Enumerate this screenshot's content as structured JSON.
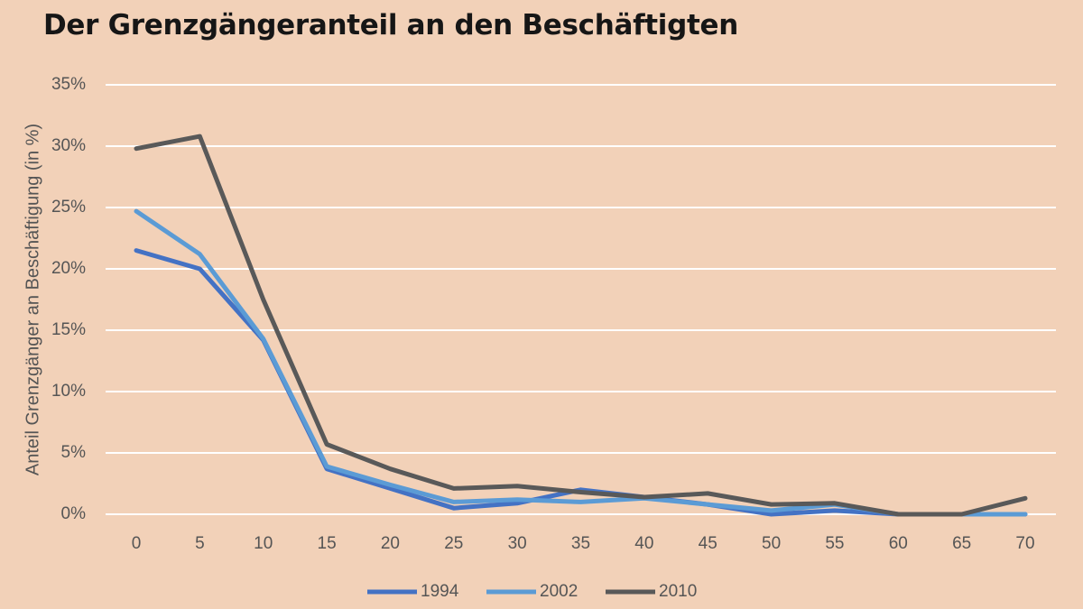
{
  "chart_data": {
    "type": "line",
    "title": "Der Grenzgängeranteil an den Beschäftigten",
    "xlabel": "",
    "ylabel": "Anteil Grenzgänger an Beschäftigung (in %)",
    "x": [
      0,
      5,
      10,
      15,
      20,
      25,
      30,
      35,
      40,
      45,
      50,
      55,
      60,
      65,
      70
    ],
    "x_tick_labels": [
      "0",
      "5",
      "10",
      "15",
      "20",
      "25",
      "30",
      "35",
      "40",
      "45",
      "50",
      "55",
      "60",
      "65",
      "70"
    ],
    "y_tick_labels": [
      "0%",
      "5%",
      "10%",
      "15%",
      "20%",
      "25%",
      "30%",
      "35%"
    ],
    "ylim": [
      0,
      35
    ],
    "grid": "horizontal",
    "legend_position": "bottom",
    "series": [
      {
        "name": "1994",
        "color": "#4472c4",
        "values": [
          21.5,
          20.0,
          14.2,
          3.7,
          2.1,
          0.5,
          0.9,
          2.0,
          1.4,
          0.8,
          0.0,
          0.3,
          0.0,
          0.0,
          0.0
        ]
      },
      {
        "name": "2002",
        "color": "#5b9bd5",
        "values": [
          24.7,
          21.2,
          14.3,
          3.9,
          2.4,
          1.0,
          1.2,
          1.0,
          1.3,
          0.8,
          0.3,
          0.8,
          0.0,
          0.0,
          0.0
        ]
      },
      {
        "name": "2010",
        "color": "#595959",
        "values": [
          29.8,
          30.8,
          17.5,
          5.7,
          3.7,
          2.1,
          2.3,
          1.8,
          1.4,
          1.7,
          0.8,
          0.9,
          0.0,
          0.0,
          1.3
        ]
      }
    ]
  }
}
